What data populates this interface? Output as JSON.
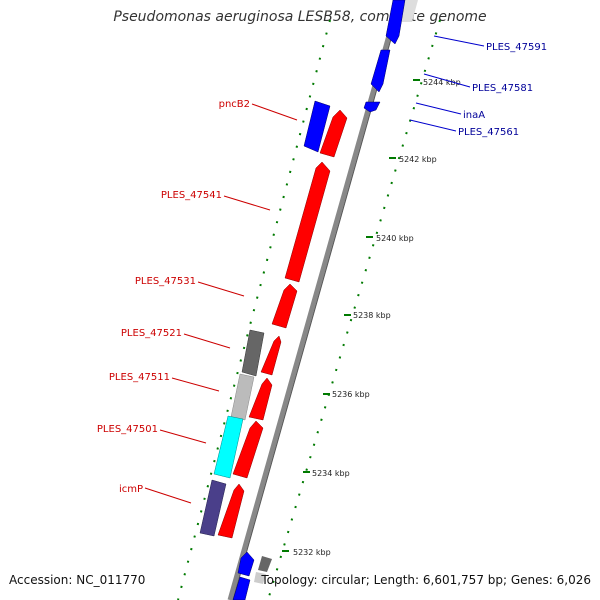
{
  "title": "Pseudomonas aeruginosa LESB58, complete genome",
  "footer": {
    "accession": "Accession: NC_011770",
    "topology": "Topology: circular; Length: 6,601,757 bp; Genes: 6,026"
  },
  "colors": {
    "forward_cds": "#ff0000",
    "reverse_cds": "#0000ff",
    "other_gray": "#666666",
    "light_gray": "#bbbbbb",
    "cyan": "#00ffff",
    "purple": "#4a3f8a",
    "tick_green": "#007a00",
    "backbone": "#888888",
    "label_red": "#cc0000",
    "label_blue": "#000099"
  },
  "kbp_labels": [
    "5232 kbp",
    "5234 kbp",
    "5236 kbp",
    "5238 kbp",
    "5240 kbp",
    "5242 kbp",
    "5244 kbp"
  ],
  "gene_labels_left": [
    "pncB2",
    "PLES_47541",
    "PLES_47531",
    "PLES_47521",
    "PLES_47511",
    "PLES_47501",
    "icmP"
  ],
  "gene_labels_right": [
    "PLES_47591",
    "PLES_47581",
    "inaA",
    "PLES_47561"
  ]
}
